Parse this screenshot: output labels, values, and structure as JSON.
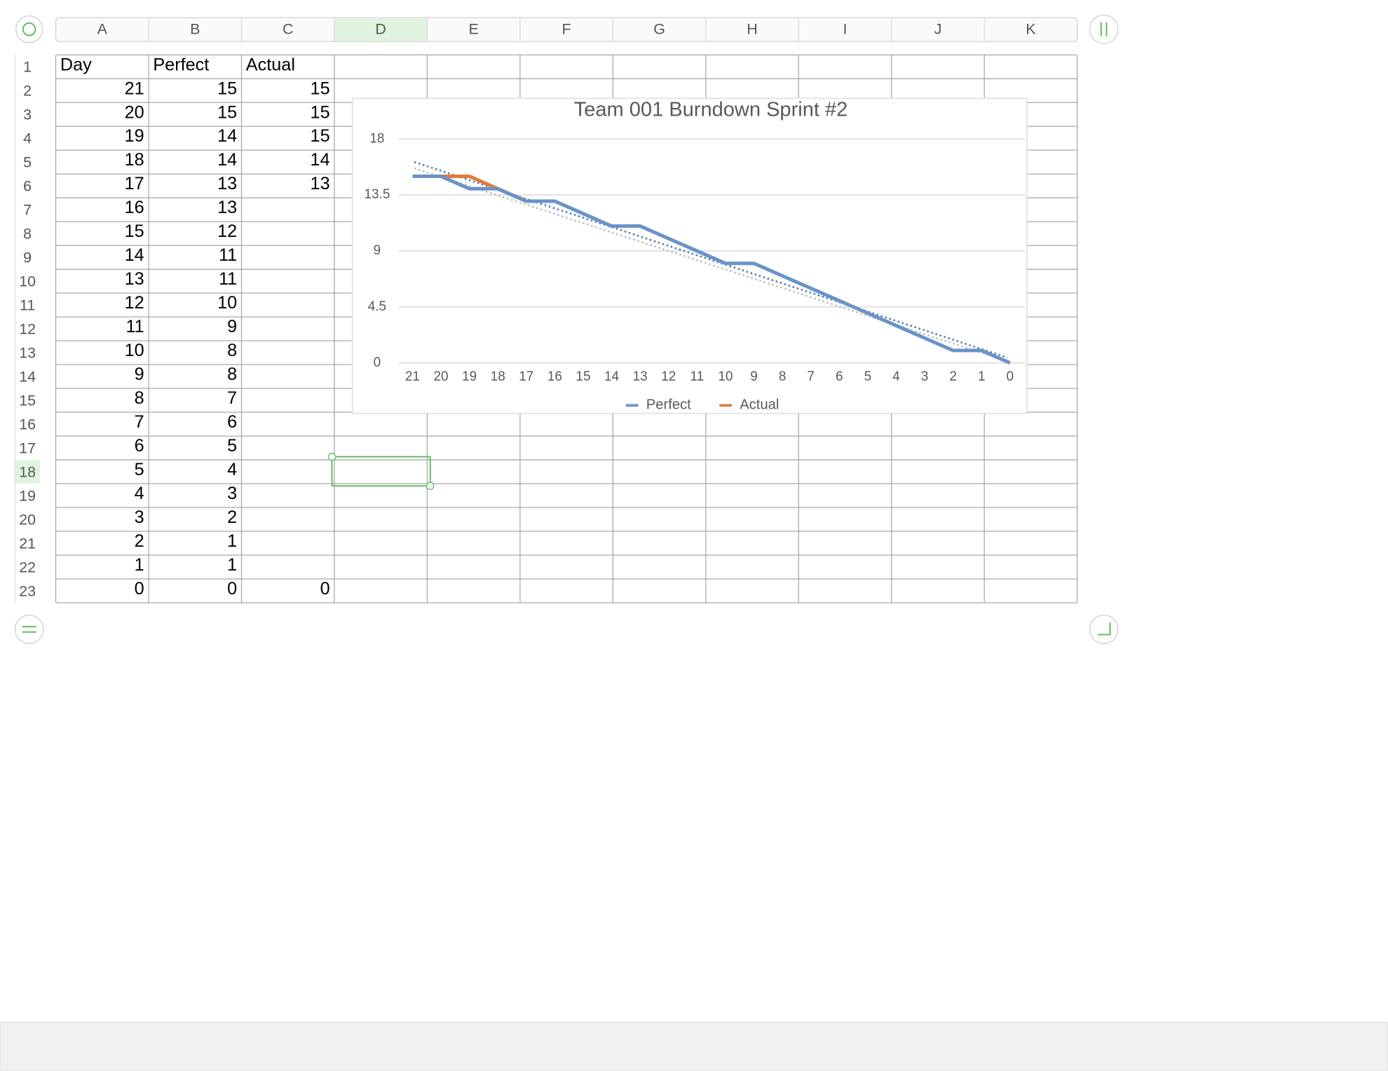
{
  "sheet": {
    "columns": [
      "A",
      "B",
      "C",
      "D",
      "E",
      "F",
      "G",
      "H",
      "I",
      "J",
      "K"
    ],
    "rows": [
      1,
      2,
      3,
      4,
      5,
      6,
      7,
      8,
      9,
      10,
      11,
      12,
      13,
      14,
      15,
      16,
      17,
      18,
      19,
      20,
      21,
      22,
      23
    ],
    "cells": [
      [
        "Day",
        "Perfect",
        "Actual"
      ],
      [
        21,
        15,
        15
      ],
      [
        20,
        15,
        15
      ],
      [
        19,
        14,
        15
      ],
      [
        18,
        14,
        14
      ],
      [
        17,
        13,
        13
      ],
      [
        16,
        13,
        null
      ],
      [
        15,
        12,
        null
      ],
      [
        14,
        11,
        null
      ],
      [
        13,
        11,
        null
      ],
      [
        12,
        10,
        null
      ],
      [
        11,
        9,
        null
      ],
      [
        10,
        8,
        null
      ],
      [
        9,
        8,
        null
      ],
      [
        8,
        7,
        null
      ],
      [
        7,
        6,
        null
      ],
      [
        6,
        5,
        null
      ],
      [
        5,
        4,
        null
      ],
      [
        4,
        3,
        null
      ],
      [
        3,
        2,
        null
      ],
      [
        2,
        1,
        null
      ],
      [
        1,
        1,
        null
      ],
      [
        0,
        0,
        0
      ]
    ]
  },
  "chart_data": {
    "type": "line",
    "title": "Team 001 Burndown Sprint #2",
    "categories": [
      21,
      20,
      19,
      18,
      17,
      16,
      15,
      14,
      13,
      12,
      11,
      10,
      9,
      8,
      7,
      6,
      5,
      4,
      3,
      2,
      1,
      0
    ],
    "series": [
      {
        "name": "Perfect",
        "color": "#6a93c8",
        "values": [
          15,
          15,
          14,
          14,
          13,
          13,
          12,
          11,
          11,
          10,
          9,
          8,
          8,
          7,
          6,
          5,
          4,
          3,
          2,
          1,
          1,
          0
        ]
      },
      {
        "name": "Actual",
        "color": "#e07b3a",
        "values": [
          15,
          15,
          15,
          14,
          13,
          null,
          null,
          null,
          null,
          null,
          null,
          null,
          null,
          null,
          null,
          null,
          null,
          null,
          null,
          null,
          null,
          0
        ]
      }
    ],
    "ylim": [
      0,
      18
    ],
    "yticks": [
      0,
      4.5,
      9,
      13.5,
      18
    ],
    "grid": true,
    "legend": "bottom"
  }
}
